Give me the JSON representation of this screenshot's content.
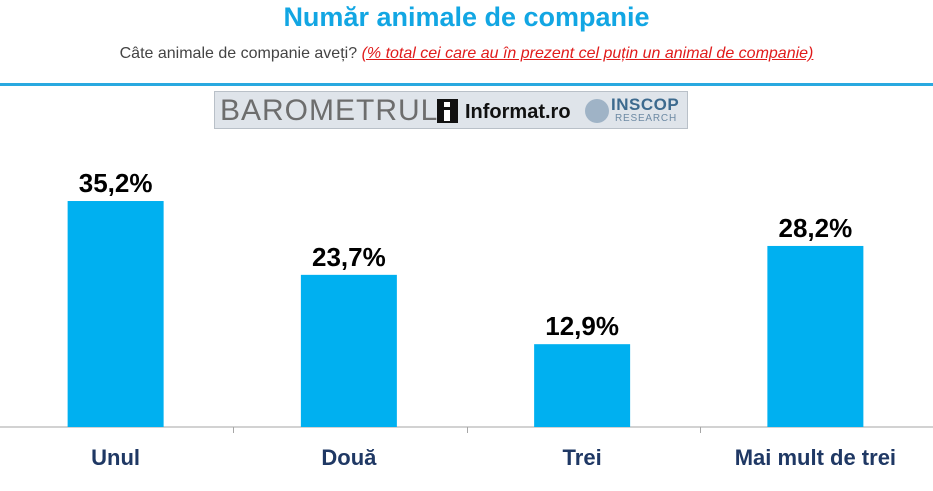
{
  "header": {
    "title": "Număr animale de companie",
    "question": "Câte animale de companie aveți?",
    "note": "(% total cei care au în prezent cel puțin un animal de companie)"
  },
  "logos": {
    "barometrul": "BAROMETRUL",
    "informat": "Informat.ro",
    "inscop": "INSCOP",
    "research": "RESEARCH"
  },
  "colors": {
    "title": "#12a6e3",
    "bar": "#00b0f0",
    "note": "#e01b1b",
    "category_label": "#1f3864"
  },
  "chart_data": {
    "type": "bar",
    "categories": [
      "Unul",
      "Două",
      "Trei",
      "Mai mult de trei"
    ],
    "values": [
      35.2,
      23.7,
      12.9,
      28.2
    ],
    "value_labels": [
      "35,2%",
      "23,7%",
      "12,9%",
      "28,2%"
    ],
    "ylim": [
      0,
      40
    ],
    "grid": false,
    "legend": "none"
  }
}
